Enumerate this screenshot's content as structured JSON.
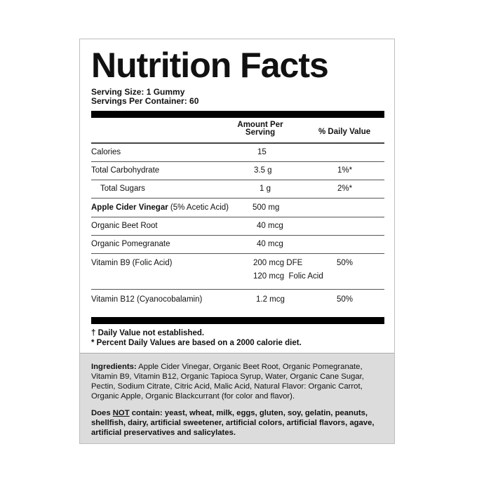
{
  "title": "Nutrition Facts",
  "serving_size": "Serving Size: 1 Gummy",
  "servings_per_container": "Servings Per Container: 60",
  "header": {
    "amount_line1": "Amount Per",
    "amount_line2": "Serving",
    "daily_value": "% Daily Value"
  },
  "rows": [
    {
      "name": "Calories",
      "amount": "15",
      "dv": ""
    },
    {
      "name": "Total Carbohydrate",
      "amount": "3.5 g",
      "dv": "1%*"
    },
    {
      "name": "Total Sugars",
      "amount": "1 g",
      "dv": "2%*"
    },
    {
      "name": "Apple Cider Vinegar",
      "name_suffix": " (5% Acetic Acid)",
      "amount": "500 mg",
      "dv": ""
    },
    {
      "name": "Organic Beet Root",
      "amount": "40 mcg",
      "dv": ""
    },
    {
      "name": "Organic Pomegranate",
      "amount": "40 mcg",
      "dv": ""
    },
    {
      "name": "Vitamin B9 (Folic Acid)",
      "amount": "200 mcg DFE",
      "amount2": "120 mcg  Folic Acid",
      "dv": "50%"
    },
    {
      "name": "Vitamin B12 (Cyanocobalamin)",
      "amount": "1.2 mcg",
      "dv": "50%"
    }
  ],
  "footnotes": [
    "† Daily Value not established.",
    "* Percent Daily Values are based on a 2000 calorie diet."
  ],
  "ingredients": {
    "label": "Ingredients:",
    "text": " Apple Cider Vinegar, Organic Beet Root, Organic Pomegranate, Vitamin B9, Vitamin B12, Organic Tapioca Syrup, Water, Organic Cane Sugar, Pectin, Sodium Citrate, Citric Acid, Malic Acid, Natural Flavor: Organic Carrot, Organic Apple, Organic Blackcurrant (for color and flavor)."
  },
  "does_not": {
    "prefix": "Does ",
    "not": "NOT",
    "text": " contain: yeast, wheat, milk, eggs, gluten, soy, gelatin, peanuts, shellfish, dairy, artificial sweetener, artificial colors, artificial flavors, agave, artificial preservatives and salicylates."
  }
}
